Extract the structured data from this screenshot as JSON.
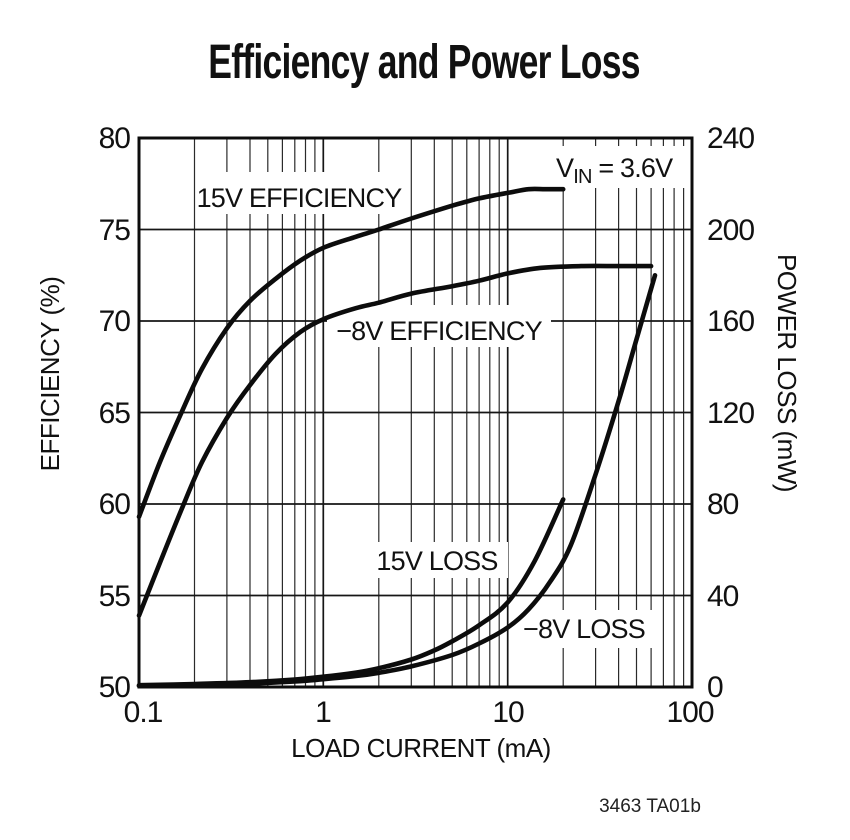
{
  "page": {
    "title": "Efficiency and Power Loss",
    "footer_code": "3463 TA01b"
  },
  "chart_data": {
    "type": "line",
    "title": "Efficiency and Power Loss",
    "annotation": {
      "full": "VIN = 3.6V",
      "prefix": "V",
      "sub": "IN",
      "rest": " = 3.6V"
    },
    "x_axis": {
      "label": "LOAD CURRENT (mA)",
      "scale": "log",
      "min": 0.1,
      "max": 100,
      "ticks": [
        "0.1",
        "1",
        "10",
        "100"
      ]
    },
    "y_left": {
      "label": "EFFICIENCY (%)",
      "min": 50,
      "max": 80,
      "step": 5,
      "ticks": [
        "80",
        "75",
        "70",
        "65",
        "60",
        "55",
        "50"
      ]
    },
    "y_right": {
      "label": "POWER LOSS (mW)",
      "min": 0,
      "max": 240,
      "step": 40,
      "ticks": [
        "240",
        "200",
        "160",
        "120",
        "80",
        "40",
        "0"
      ]
    },
    "grid": {
      "vertical": "log decades with minor lines 2-9",
      "horizontal": "every 5 % (40 mW)"
    },
    "legend": "inline curve labels",
    "series": [
      {
        "name": "15V EFFICIENCY",
        "axis": "left",
        "units": "%",
        "x": [
          0.1,
          0.13,
          0.17,
          0.22,
          0.3,
          0.4,
          0.55,
          0.75,
          1.0,
          1.5,
          2,
          3,
          5,
          7,
          10,
          13,
          16,
          20
        ],
        "y": [
          59.3,
          62.3,
          65.0,
          67.4,
          69.6,
          71.1,
          72.3,
          73.3,
          74.0,
          74.6,
          75.0,
          75.6,
          76.3,
          76.7,
          77.0,
          77.2,
          77.2,
          77.2
        ]
      },
      {
        "name": "−8V EFFICIENCY",
        "axis": "left",
        "units": "%",
        "x": [
          0.1,
          0.13,
          0.17,
          0.22,
          0.3,
          0.4,
          0.55,
          0.75,
          1.0,
          1.5,
          2,
          3,
          5,
          7,
          10,
          15,
          25,
          40,
          60
        ],
        "y": [
          53.9,
          56.8,
          59.7,
          62.3,
          64.7,
          66.5,
          68.2,
          69.4,
          70.1,
          70.7,
          71.0,
          71.5,
          71.9,
          72.2,
          72.6,
          72.9,
          73.0,
          73.0,
          73.0
        ]
      },
      {
        "name": "15V LOSS",
        "axis": "right",
        "units": "mW",
        "x": [
          0.1,
          0.2,
          0.4,
          0.7,
          1.0,
          1.5,
          2,
          3,
          4,
          5,
          7,
          10,
          14,
          20
        ],
        "y": [
          0.8,
          1.3,
          2.1,
          3.3,
          4.5,
          6.3,
          8.2,
          12,
          16,
          20,
          27,
          37,
          55,
          82
        ]
      },
      {
        "name": "−8V LOSS",
        "axis": "right",
        "units": "mW",
        "x": [
          0.1,
          0.2,
          0.4,
          0.7,
          1.0,
          1.5,
          2,
          3,
          5,
          7,
          10,
          13,
          17,
          22,
          30,
          40,
          50,
          63
        ],
        "y": [
          0.5,
          0.9,
          1.5,
          2.4,
          3.4,
          4.8,
          6.2,
          9,
          14,
          19,
          26,
          34,
          46,
          62,
          93,
          125,
          152,
          180
        ]
      }
    ]
  }
}
